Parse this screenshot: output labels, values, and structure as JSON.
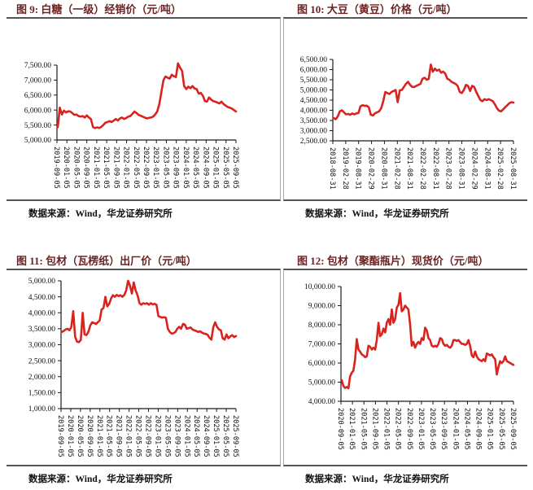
{
  "colors": {
    "line": "#d9231f",
    "title_text": "#6b2423",
    "rule": "#555555",
    "divider": "#a8a8a8",
    "axis": "#1a1a1a",
    "source_text": "#111111"
  },
  "chart_data": [
    {
      "type": "line",
      "fig_label": "图 9: 白糖（一级）经销价（元/吨）",
      "title": "白糖（一级）经销价（元/吨）",
      "source_note": "数据来源：Wind，华龙证券研究所",
      "ylim": [
        5000,
        7500
      ],
      "ytick_step": 500,
      "grid": false,
      "legend": "none",
      "x_tick_labels": [
        "2019-09-05",
        "2020-01-05",
        "2020-05-05",
        "2020-09-05",
        "2021-01-05",
        "2021-05-05",
        "2021-09-05",
        "2022-01-05",
        "2022-05-05",
        "2022-09-05",
        "2023-01-05",
        "2023-05-05",
        "2023-09-05",
        "2024-01-05",
        "2024-05-05",
        "2024-09-05",
        "2025-01-05",
        "2025-05-05",
        "2025-09-05"
      ],
      "series": [
        {
          "name": "白糖（一级）经销价",
          "values": [
            5430,
            6080,
            5850,
            5980,
            5920,
            5960,
            5950,
            5900,
            5840,
            5850,
            5800,
            5780,
            5800,
            5750,
            5820,
            5750,
            5700,
            5430,
            5400,
            5420,
            5400,
            5440,
            5500,
            5580,
            5600,
            5630,
            5600,
            5650,
            5700,
            5650,
            5720,
            5750,
            5700,
            5730,
            5780,
            5800,
            5870,
            5950,
            5900,
            5840,
            5810,
            5780,
            5750,
            5720,
            5740,
            5750,
            5780,
            5850,
            5950,
            6200,
            6600,
            7000,
            7120,
            7080,
            7050,
            7180,
            7130,
            7100,
            7560,
            7420,
            7300,
            6800,
            6700,
            6780,
            6730,
            6800,
            6720,
            6700,
            6550,
            6570,
            6480,
            6300,
            6280,
            6420,
            6350,
            6300,
            6280,
            6250,
            6220,
            6280,
            6200,
            6150,
            6100,
            6080,
            6050,
            6000,
            5950
          ]
        }
      ]
    },
    {
      "type": "line",
      "fig_label": "图 10: 大豆（黄豆）价格（元/吨）",
      "title": "大豆（黄豆）价格（元/吨）",
      "source_note": "数据来源：Wind，华龙证券研究所",
      "ylim": [
        2500,
        6500
      ],
      "ytick_step": 500,
      "grid": false,
      "legend": "none",
      "x_tick_labels": [
        "2018-08-31",
        "2019-02-28",
        "2019-08-31",
        "2020-02-29",
        "2020-08-31",
        "2021-02-28",
        "2021-08-31",
        "2022-02-28",
        "2022-08-31",
        "2023-02-28",
        "2023-08-31",
        "2024-02-29",
        "2024-08-31",
        "2025-02-28",
        "2025-08-31"
      ],
      "series": [
        {
          "name": "大豆（黄豆）价格",
          "values": [
            3620,
            3560,
            3700,
            3950,
            4000,
            3900,
            3800,
            3820,
            3780,
            3850,
            3800,
            3850,
            3870,
            4200,
            4250,
            4220,
            4230,
            4150,
            3780,
            3750,
            3850,
            3900,
            3950,
            4100,
            4450,
            4900,
            4850,
            4800,
            4900,
            4950,
            5000,
            4400,
            4980,
            5000,
            5150,
            5300,
            5400,
            5250,
            5150,
            5150,
            5200,
            5250,
            5300,
            5550,
            5600,
            5500,
            5550,
            6250,
            5900,
            6050,
            5950,
            6000,
            5850,
            5900,
            5800,
            5550,
            5500,
            5400,
            5350,
            5300,
            5200,
            4900,
            4850,
            5000,
            5250,
            5200,
            4950,
            5200,
            5150,
            4900,
            4700,
            4500,
            4450,
            4550,
            4500,
            4550,
            4500,
            4450,
            4300,
            4100,
            3980,
            3950,
            4050,
            4150,
            4250,
            4350,
            4400,
            4380
          ]
        }
      ]
    },
    {
      "type": "line",
      "fig_label": "图 11: 包材（瓦楞纸）出厂价（元/吨）",
      "title": "包材（瓦楞纸）出厂价（元/吨）",
      "source_note": "数据来源：Wind，华龙证券研究所",
      "ylim": [
        1000,
        5000
      ],
      "ytick_step": 500,
      "grid": false,
      "legend": "none",
      "x_tick_labels": [
        "2019-09-05",
        "2020-01-05",
        "2020-05-05",
        "2020-09-05",
        "2021-01-05",
        "2021-05-05",
        "2021-09-05",
        "2022-01-05",
        "2022-05-05",
        "2022-09-05",
        "2023-01-05",
        "2023-05-05",
        "2023-09-05",
        "2024-01-05",
        "2024-05-05",
        "2024-09-05",
        "2025-01-05",
        "2025-05-05",
        "2025-09-05"
      ],
      "series": [
        {
          "name": "瓦楞纸出厂价",
          "values": [
            3400,
            3430,
            3480,
            3500,
            3450,
            3550,
            4050,
            3250,
            3100,
            3080,
            3150,
            4000,
            3320,
            3300,
            3400,
            3600,
            3700,
            3680,
            3650,
            3700,
            3760,
            4100,
            4150,
            4500,
            4200,
            4280,
            4450,
            4550,
            4500,
            4560,
            4520,
            4550,
            4500,
            4560,
            4700,
            5000,
            4850,
            4600,
            4950,
            4700,
            4550,
            4300,
            4250,
            4300,
            4280,
            4300,
            4250,
            4300,
            4260,
            4280,
            4250,
            3900,
            3870,
            3850,
            3860,
            3840,
            3500,
            3400,
            3350,
            3360,
            3400,
            3500,
            3560,
            3500,
            3650,
            3630,
            3500,
            3520,
            3540,
            3480,
            3450,
            3430,
            3400,
            3420,
            3380,
            3350,
            3340,
            3310,
            3220,
            3160,
            3550,
            3700,
            3560,
            3480,
            3450,
            3200,
            3160,
            3320,
            3200,
            3260,
            3300,
            3240,
            3270
          ]
        }
      ]
    },
    {
      "type": "line",
      "fig_label": "图 12: 包材（聚酯瓶片）现货价（元/吨）",
      "title": "包材（聚酯瓶片）现货价（元/吨）",
      "source_note": "数据来源：Wind，华龙证券研究所",
      "ylim": [
        4000,
        10000
      ],
      "ytick_step": 1000,
      "grid": false,
      "legend": "none",
      "x_tick_labels": [
        "2020-09-05",
        "2021-01-05",
        "2021-05-05",
        "2021-09-05",
        "2022-01-05",
        "2022-05-05",
        "2022-09-05",
        "2023-01-05",
        "2023-05-05",
        "2023-09-05",
        "2024-01-05",
        "2024-05-05",
        "2024-09-05",
        "2025-01-05",
        "2025-05-05",
        "2025-09-05"
      ],
      "series": [
        {
          "name": "聚酯瓶片现货价",
          "values": [
            5100,
            4800,
            4700,
            4750,
            4680,
            5300,
            5500,
            5600,
            6200,
            7250,
            6700,
            6600,
            6450,
            6400,
            6300,
            6350,
            6900,
            6850,
            6700,
            6800,
            6700,
            7200,
            8100,
            7400,
            7500,
            7800,
            7600,
            8100,
            8300,
            8000,
            8800,
            8100,
            8300,
            8900,
            9050,
            9650,
            8700,
            8800,
            9000,
            8900,
            8800,
            8000,
            6900,
            7100,
            6800,
            7000,
            7100,
            7000,
            7300,
            7200,
            7850,
            7700,
            7300,
            7200,
            6900,
            6850,
            6900,
            6850,
            7000,
            7300,
            7250,
            7000,
            6900,
            6950,
            6850,
            6800,
            6900,
            7200,
            7200,
            7150,
            7200,
            7100,
            7000,
            7000,
            6950,
            7000,
            7200,
            6900,
            6400,
            6300,
            6600,
            6350,
            6200,
            6150,
            6100,
            6200,
            6100,
            6500,
            6450,
            6400,
            6450,
            6300,
            6200,
            5400,
            5800,
            6100,
            6000,
            6100,
            6350,
            6100,
            6050,
            6000,
            5950,
            5900
          ]
        }
      ]
    }
  ]
}
